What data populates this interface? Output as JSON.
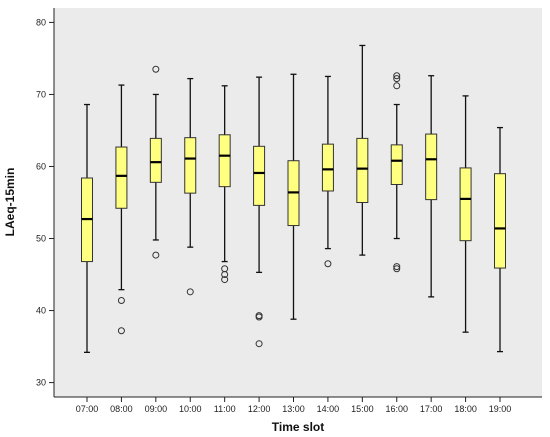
{
  "chart_data": {
    "type": "boxplot",
    "title": "",
    "xlabel": "Time slot",
    "ylabel": "LAeq-15min",
    "ylim": [
      28,
      82
    ],
    "yticks": [
      30,
      40,
      50,
      60,
      70,
      80
    ],
    "grid": false,
    "colors": {
      "plot_background": "#ebebeb",
      "box_fill": "#ffff80",
      "box_stroke": "#333333",
      "median": "#000000"
    },
    "categories": [
      "07:00",
      "08:00",
      "09:00",
      "10:00",
      "11:00",
      "12:00",
      "13:00",
      "14:00",
      "15:00",
      "16:00",
      "17:00",
      "18:00",
      "19:00"
    ],
    "boxes": [
      {
        "min": 34.2,
        "q1": 46.8,
        "median": 52.7,
        "q3": 58.4,
        "max": 68.6,
        "outliers": []
      },
      {
        "min": 42.9,
        "q1": 54.2,
        "median": 58.7,
        "q3": 62.7,
        "max": 71.3,
        "outliers": [
          41.4,
          37.2
        ]
      },
      {
        "min": 49.8,
        "q1": 57.8,
        "median": 60.6,
        "q3": 63.9,
        "max": 70.0,
        "outliers": [
          73.5,
          47.7
        ]
      },
      {
        "min": 48.8,
        "q1": 56.3,
        "median": 61.1,
        "q3": 64.0,
        "max": 72.2,
        "outliers": [
          42.6
        ]
      },
      {
        "min": 46.8,
        "q1": 57.2,
        "median": 61.5,
        "q3": 64.4,
        "max": 71.2,
        "outliers": [
          45.8,
          45.0,
          44.3
        ]
      },
      {
        "min": 45.3,
        "q1": 54.6,
        "median": 59.1,
        "q3": 62.8,
        "max": 72.4,
        "outliers": [
          39.3,
          39.1,
          35.4
        ]
      },
      {
        "min": 38.8,
        "q1": 51.8,
        "median": 56.4,
        "q3": 60.8,
        "max": 72.8,
        "outliers": []
      },
      {
        "min": 48.6,
        "q1": 56.6,
        "median": 59.6,
        "q3": 63.1,
        "max": 72.5,
        "outliers": [
          46.5
        ]
      },
      {
        "min": 47.7,
        "q1": 55.0,
        "median": 59.7,
        "q3": 63.9,
        "max": 76.8,
        "outliers": []
      },
      {
        "min": 50.0,
        "q1": 57.5,
        "median": 60.8,
        "q3": 63.0,
        "max": 68.6,
        "outliers": [
          72.6,
          72.2,
          71.2,
          46.1,
          45.8
        ]
      },
      {
        "min": 41.9,
        "q1": 55.4,
        "median": 61.0,
        "q3": 64.5,
        "max": 72.6,
        "outliers": []
      },
      {
        "min": 37.0,
        "q1": 49.7,
        "median": 55.5,
        "q3": 59.8,
        "max": 69.8,
        "outliers": []
      },
      {
        "min": 34.3,
        "q1": 45.9,
        "median": 51.4,
        "q3": 59.0,
        "max": 65.4,
        "outliers": []
      }
    ]
  }
}
